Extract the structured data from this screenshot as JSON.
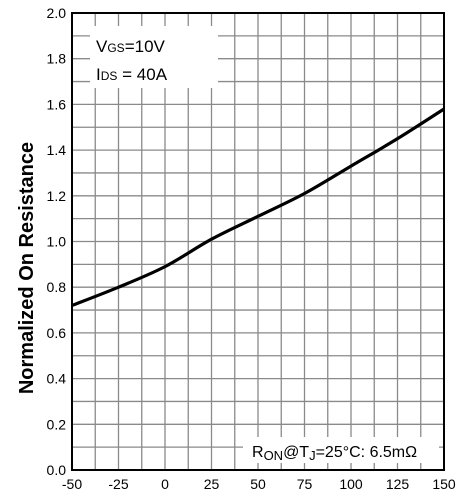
{
  "chart_data": {
    "type": "line",
    "title": "",
    "xlabel": "",
    "ylabel": "Normalized On Resistance",
    "xlim": [
      -50,
      150
    ],
    "ylim": [
      0.0,
      2.0
    ],
    "x_ticks": [
      "-50",
      "-25",
      "0",
      "25",
      "50",
      "75",
      "100",
      "125",
      "150"
    ],
    "y_ticks": [
      "0.0",
      "0.2",
      "0.4",
      "0.6",
      "0.8",
      "1.0",
      "1.2",
      "1.4",
      "1.6",
      "1.8",
      "2.0"
    ],
    "grid": true,
    "series": [
      {
        "x": [
          -50,
          -25,
          0,
          25,
          50,
          75,
          100,
          125,
          150
        ],
        "y": [
          0.72,
          0.8,
          0.89,
          1.01,
          1.11,
          1.21,
          1.33,
          1.45,
          1.58
        ]
      }
    ],
    "conditions": {
      "line1_prefix": "V",
      "line1_sub": "GS",
      "line1_value": "=10V",
      "line2_prefix": "I",
      "line2_sub": "DS",
      "line2_value": " = 40A"
    },
    "annotation": {
      "r": "R",
      "r_sub": "ON",
      "at": "@T",
      "t_sub": "J",
      "value": "=25°C: 6.5mΩ"
    },
    "colors": {
      "line": "#000000",
      "grid": "#8a8a8a",
      "background": "#ffffff"
    }
  }
}
